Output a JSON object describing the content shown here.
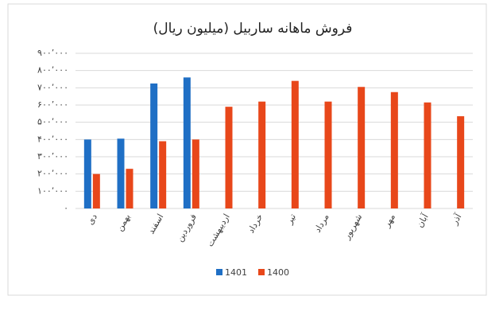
{
  "chart_data": {
    "type": "bar",
    "title": "فروش ماهانه ساربیل (میلیون ریال)",
    "categories": [
      "دی",
      "بهمن",
      "اسفند",
      "فروردین",
      "اردیبهشت",
      "خرداد",
      "تیر",
      "مرداد",
      "شهریور",
      "مهر",
      "آبان",
      "آذر"
    ],
    "series": [
      {
        "name": "1401",
        "color": "#1f6fc5",
        "values": [
          400000,
          405000,
          725000,
          760000,
          null,
          null,
          null,
          null,
          null,
          null,
          null,
          null
        ]
      },
      {
        "name": "1400",
        "color": "#e8471a",
        "values": [
          200000,
          230000,
          390000,
          400000,
          590000,
          620000,
          740000,
          620000,
          705000,
          675000,
          615000,
          535000
        ]
      }
    ],
    "ylim": [
      0,
      900000
    ],
    "yticks": [
      {
        "value": 0,
        "label": "۰"
      },
      {
        "value": 100000,
        "label": "۱۰۰٬۰۰۰"
      },
      {
        "value": 200000,
        "label": "۲۰۰٬۰۰۰"
      },
      {
        "value": 300000,
        "label": "۳۰۰٬۰۰۰"
      },
      {
        "value": 400000,
        "label": "۴۰۰٬۰۰۰"
      },
      {
        "value": 500000,
        "label": "۵۰۰٬۰۰۰"
      },
      {
        "value": 600000,
        "label": "۶۰۰٬۰۰۰"
      },
      {
        "value": 700000,
        "label": "۷۰۰٬۰۰۰"
      },
      {
        "value": 800000,
        "label": "۸۰۰٬۰۰۰"
      },
      {
        "value": 900000,
        "label": "۹۰۰٬۰۰۰"
      }
    ],
    "grid": true,
    "legend": "bottom"
  }
}
